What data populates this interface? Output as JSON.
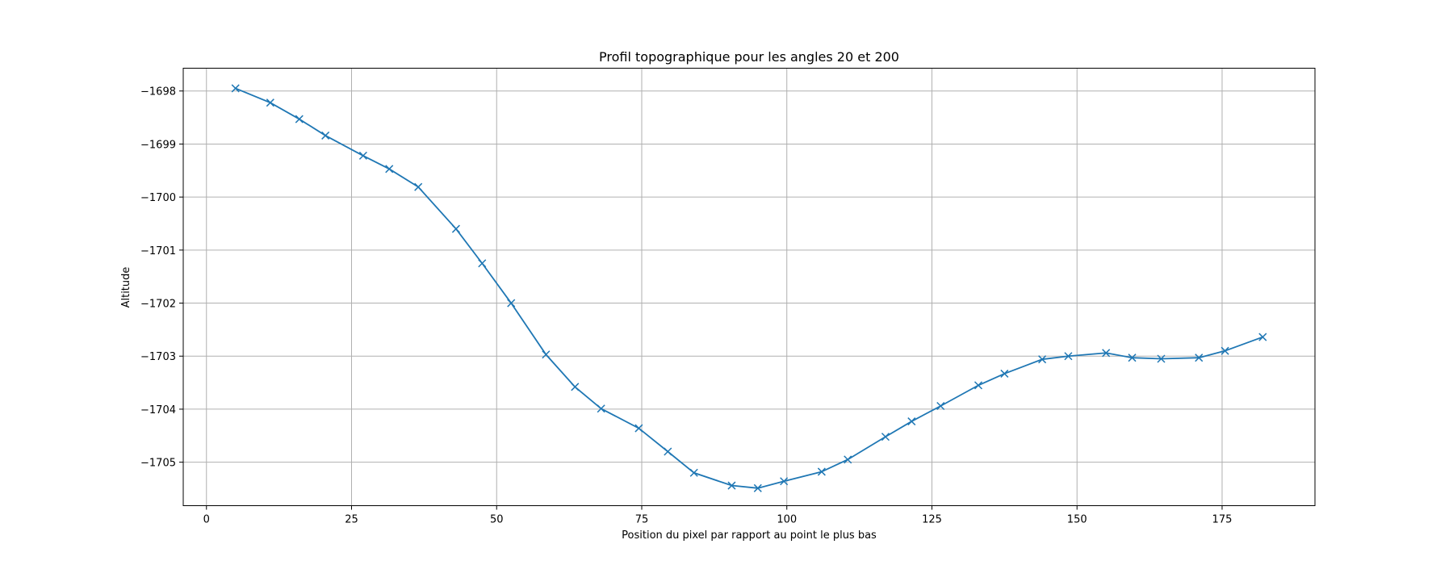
{
  "chart_data": {
    "type": "line",
    "title": "Profil topographique pour les angles 20 et 200",
    "xlabel": "Position du pixel par rapport au point le plus bas",
    "ylabel": "Altitude",
    "xlim": [
      -4,
      191
    ],
    "ylim": [
      -1705.82,
      -1697.57
    ],
    "xticks": [
      0,
      25,
      50,
      75,
      100,
      125,
      150,
      175
    ],
    "yticks": [
      -1698,
      -1699,
      -1700,
      -1701,
      -1702,
      -1703,
      -1704,
      -1705
    ],
    "grid": true,
    "marker": "x",
    "color": "#1f77b4",
    "x": [
      5,
      11,
      16,
      20.5,
      27,
      31.5,
      36.5,
      43,
      47.5,
      52.5,
      58.5,
      63.5,
      68,
      74.5,
      79.5,
      84,
      90.5,
      95,
      99.5,
      106,
      110.5,
      117,
      121.5,
      126.5,
      133,
      137.5,
      144,
      148.5,
      155,
      159.5,
      164.5,
      171,
      175.5,
      182
    ],
    "y": [
      -1697.95,
      -1698.22,
      -1698.53,
      -1698.84,
      -1699.22,
      -1699.47,
      -1699.81,
      -1700.6,
      -1701.25,
      -1702.0,
      -1702.97,
      -1703.58,
      -1703.99,
      -1704.36,
      -1704.8,
      -1705.2,
      -1705.44,
      -1705.49,
      -1705.36,
      -1705.18,
      -1704.95,
      -1704.52,
      -1704.23,
      -1703.94,
      -1703.55,
      -1703.33,
      -1703.06,
      -1703.0,
      -1702.94,
      -1703.03,
      -1703.05,
      -1703.03,
      -1702.9,
      -1702.64
    ]
  }
}
